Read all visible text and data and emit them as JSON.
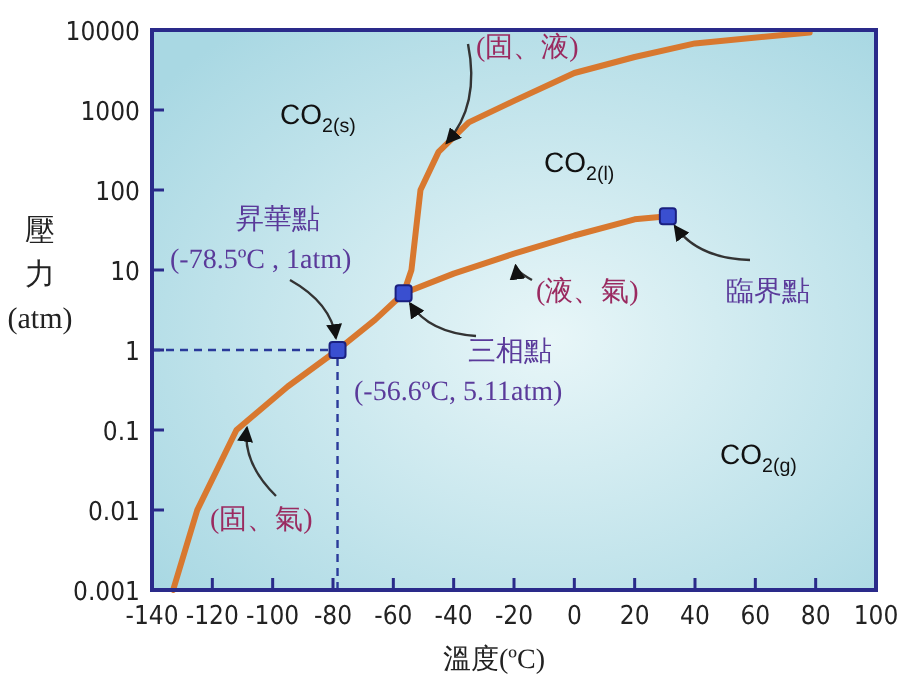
{
  "chart_data": {
    "type": "line",
    "xlabel": "溫度(ºC)",
    "ylabel": "壓力(atm)",
    "xlim": [
      -140,
      100
    ],
    "xticks": [
      -140,
      -120,
      -100,
      -80,
      -60,
      -40,
      -20,
      0,
      20,
      40,
      60,
      80,
      100
    ],
    "ylim": [
      0.001,
      10000
    ],
    "yticks": [
      0.001,
      0.01,
      0.1,
      1,
      10,
      100,
      1000,
      10000
    ],
    "log": true,
    "grid": false,
    "series": [
      {
        "color": "#d8782f",
        "x": [
          -133,
          -125,
          -112,
          -95,
          -78.5,
          -66,
          -56.6
        ],
        "values": [
          0.001,
          0.01,
          0.1,
          0.35,
          1,
          2.4,
          5.11
        ]
      },
      {
        "color": "#d8782f",
        "x": [
          -56.6,
          -40,
          -20,
          0,
          20,
          31
        ],
        "values": [
          5.11,
          9,
          16,
          27,
          43,
          47
        ]
      },
      {
        "color": "#d8782f",
        "x": [
          -56.6,
          -54,
          -51,
          -45,
          -35,
          -20,
          0,
          20,
          40,
          78
        ],
        "values": [
          5.11,
          10,
          100,
          300,
          700,
          1300,
          2900,
          4600,
          6800,
          9300
        ]
      },
      {
        "type": "scatter",
        "color": "#3a4fd0",
        "marker": "square",
        "x": [
          -78.5,
          -56.6,
          31
        ],
        "values": [
          1,
          5.11,
          47
        ]
      }
    ],
    "ref_lines": [
      {
        "axis": "x",
        "value": -78.5,
        "color": "#2a3a9a",
        "line_style": "dashed"
      },
      {
        "axis": "y",
        "value": 1,
        "color": "#2a3a9a",
        "line_style": "dashed"
      }
    ],
    "annotations": [
      {
        "text": "(固、液)",
        "x": -45,
        "y": 300
      },
      "CO$_{2(s)}$",
      "CO$_{2(l)}$",
      {
        "text": "臨界點",
        "x": 31,
        "y": 47
      },
      {
        "text": "(液、氣)",
        "x": -20,
        "y": 16
      },
      {
        "text": "三相點\n(-56.6ºC, 5.11atm)",
        "x": -56.6,
        "y": 5.11
      },
      {
        "text": "昇華點\n(-78.5ºC , 1atm)",
        "x": -78.5,
        "y": 1
      },
      {
        "text": "(固、氣)",
        "x": -108,
        "y": 0.15
      },
      "CO$_{2(g)}$"
    ]
  }
}
